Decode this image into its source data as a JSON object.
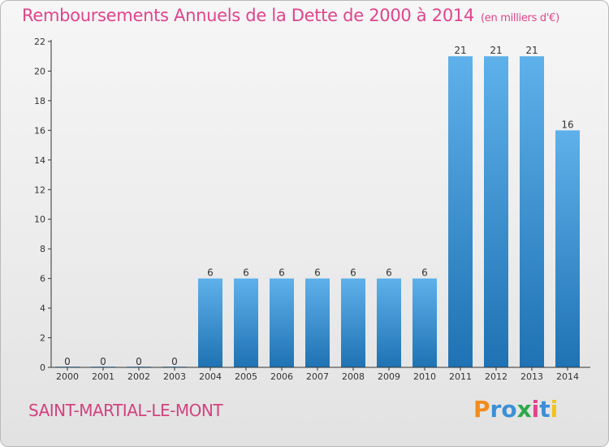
{
  "title": "Remboursements Annuels de la Dette de 2000 à 2014",
  "unit": "(en milliers d'€)",
  "commune": "SAINT-MARTIAL-LE-MONT",
  "brand": {
    "letters": [
      "P",
      "r",
      "o",
      "x",
      "i",
      "t",
      "i"
    ],
    "colors": [
      "#f28c1e",
      "#3c8fd6",
      "#3c8fd6",
      "#2ea84a",
      "#e0448c",
      "#3c8fd6",
      "#f2c21e"
    ]
  },
  "colors": {
    "bar_light": "#5aaee8",
    "bar_dark": "#1f74b6",
    "axis": "#333333",
    "grid": "#d0d0d0"
  },
  "chart_data": {
    "type": "bar",
    "categories": [
      "2000",
      "2001",
      "2002",
      "2003",
      "2004",
      "2005",
      "2006",
      "2007",
      "2008",
      "2009",
      "2010",
      "2011",
      "2012",
      "2013",
      "2014"
    ],
    "values": [
      0,
      0,
      0,
      0,
      6,
      6,
      6,
      6,
      6,
      6,
      6,
      21,
      21,
      21,
      16
    ],
    "ylim": [
      0,
      22
    ],
    "yticks": [
      0,
      2,
      4,
      6,
      8,
      10,
      12,
      14,
      16,
      18,
      20,
      22
    ],
    "grid": false,
    "xlabel": "",
    "ylabel": ""
  }
}
